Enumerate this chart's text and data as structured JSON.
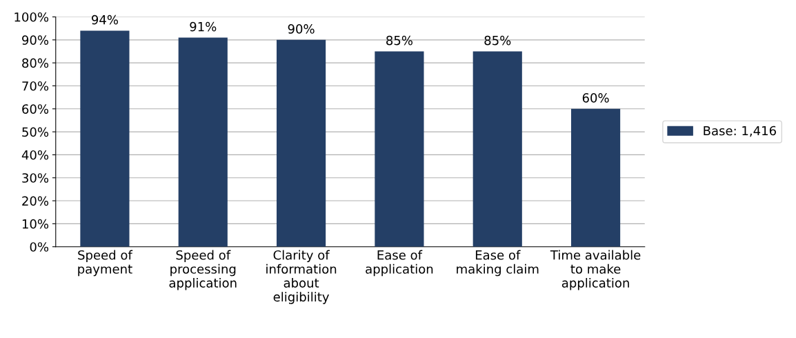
{
  "chart_data": {
    "type": "bar",
    "categories": [
      "Speed of\npayment",
      "Speed of\nprocessing\napplication",
      "Clarity of\ninformation\nabout\neligibility",
      "Ease of\napplication",
      "Ease of\nmaking claim",
      "Time available\nto make\napplication"
    ],
    "series": [
      {
        "name": "Base: 1,416",
        "color": "#243f66",
        "values": [
          94,
          91,
          90,
          85,
          85,
          60
        ],
        "value_labels": [
          "94%",
          "91%",
          "90%",
          "85%",
          "85%",
          "60%"
        ]
      }
    ],
    "ylim": [
      0,
      100
    ],
    "yticks": [
      {
        "value": 0,
        "label": "0%"
      },
      {
        "value": 10,
        "label": "10%"
      },
      {
        "value": 20,
        "label": "20%"
      },
      {
        "value": 30,
        "label": "30%"
      },
      {
        "value": 40,
        "label": "40%"
      },
      {
        "value": 50,
        "label": "50%"
      },
      {
        "value": 60,
        "label": "60%"
      },
      {
        "value": 70,
        "label": "70%"
      },
      {
        "value": 80,
        "label": "80%"
      },
      {
        "value": 90,
        "label": "90%"
      },
      {
        "value": 100,
        "label": "100%"
      }
    ],
    "grid": "y",
    "legend": "right"
  }
}
